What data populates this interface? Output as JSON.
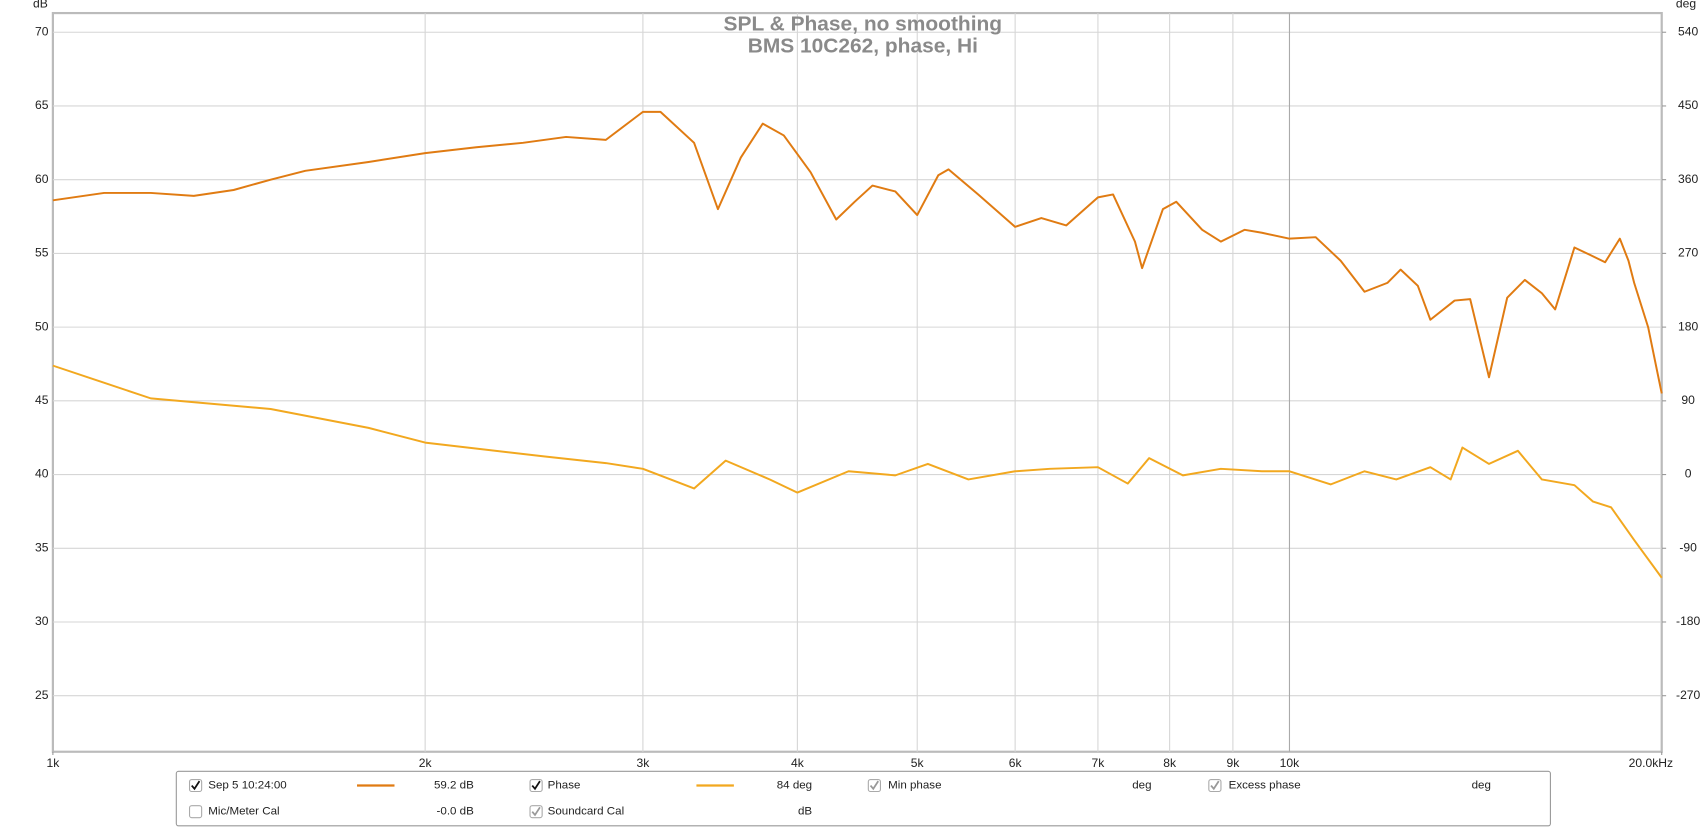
{
  "chart_data": {
    "type": "line",
    "title": "SPL & Phase, no smoothing",
    "subtitle": "BMS 10C262, phase, Hi",
    "y_label": "dB",
    "y2_label": "deg",
    "log_x": true,
    "grid": true,
    "xlim": [
      1000,
      20000
    ],
    "xticks": [
      {
        "value": 1000,
        "label": "1k"
      },
      {
        "value": 2000,
        "label": "2k"
      },
      {
        "value": 3000,
        "label": "3k"
      },
      {
        "value": 4000,
        "label": "4k"
      },
      {
        "value": 5000,
        "label": "5k"
      },
      {
        "value": 6000,
        "label": "6k"
      },
      {
        "value": 7000,
        "label": "7k"
      },
      {
        "value": 8000,
        "label": "8k"
      },
      {
        "value": 9000,
        "label": "9k"
      },
      {
        "value": 10000,
        "label": "10k"
      },
      {
        "value": 20000,
        "label": "20.0kHz"
      }
    ],
    "ylim": [
      21.2,
      71.3
    ],
    "yticks": [
      25,
      30,
      35,
      40,
      45,
      50,
      55,
      60,
      65,
      70
    ],
    "y2lim": [
      -338.4,
      563.4
    ],
    "y2ticks": [
      -270,
      -180,
      -90,
      0,
      90,
      180,
      270,
      360,
      450,
      540
    ],
    "series": [
      {
        "name": "Sep 5 10:24:00",
        "color": "#e07b12",
        "x": [
          1000,
          1100,
          1200,
          1300,
          1400,
          1500,
          1600,
          1800,
          2000,
          2200,
          2400,
          2600,
          2800,
          3000,
          3100,
          3300,
          3450,
          3600,
          3750,
          3900,
          4100,
          4300,
          4450,
          4600,
          4800,
          5000,
          5200,
          5300,
          5600,
          6000,
          6300,
          6600,
          7000,
          7200,
          7500,
          7600,
          7900,
          8100,
          8500,
          8800,
          9200,
          9500,
          10000,
          10500,
          11000,
          11500,
          12000,
          12300,
          12700,
          13000,
          13600,
          14000,
          14500,
          15000,
          15500,
          16000,
          16400,
          17000,
          17500,
          18000,
          18500,
          18800,
          19000,
          19500,
          20000
        ],
        "values": [
          58.6,
          59.1,
          59.1,
          58.9,
          59.3,
          60.0,
          60.6,
          61.2,
          61.8,
          62.2,
          62.5,
          62.9,
          62.7,
          64.6,
          64.6,
          62.5,
          58.0,
          61.5,
          63.8,
          63.0,
          60.5,
          57.3,
          58.5,
          59.6,
          59.2,
          57.6,
          60.3,
          60.7,
          59.0,
          56.8,
          57.4,
          56.9,
          58.8,
          59.0,
          55.8,
          54.0,
          58.0,
          58.5,
          56.6,
          55.8,
          56.6,
          56.4,
          56.0,
          56.1,
          54.5,
          52.4,
          53.0,
          53.9,
          52.8,
          50.5,
          51.8,
          51.9,
          46.6,
          52.0,
          53.2,
          52.3,
          51.2,
          55.4,
          54.9,
          54.4,
          56.0,
          54.5,
          53.0,
          50.0,
          45.5
        ]
      },
      {
        "name": "Phase",
        "color": "#f2a81f",
        "axis": "y2",
        "x": [
          1000,
          1200,
          1500,
          1800,
          2000,
          2500,
          2800,
          3000,
          3300,
          3500,
          3800,
          4000,
          4400,
          4800,
          5100,
          5500,
          6000,
          6400,
          7000,
          7400,
          7700,
          8200,
          8800,
          9500,
          10000,
          10800,
          11500,
          12200,
          13000,
          13500,
          13800,
          14500,
          15300,
          16000,
          17000,
          17600,
          18200,
          19000,
          20000
        ],
        "values": [
          133,
          93,
          80,
          57,
          39,
          22,
          14,
          7,
          -17,
          17,
          -6,
          -22,
          4,
          -1,
          13,
          -6,
          4,
          7,
          9,
          -11,
          20,
          -1,
          7,
          4,
          4,
          -12,
          4,
          -6,
          9,
          -6,
          33,
          13,
          29,
          -6,
          -13,
          -33,
          -40,
          -80,
          -126
        ]
      }
    ],
    "legend": [
      {
        "label": "Sep 5 10:24:00",
        "readout": "59.2 dB",
        "checked": true,
        "color": "#e07b12"
      },
      {
        "label": "Phase",
        "readout": "84 deg",
        "checked": true,
        "color": "#f2a81f"
      },
      {
        "label": "Min phase",
        "readout": "deg",
        "checked": true,
        "color": "#999999"
      },
      {
        "label": "Excess phase",
        "readout": "deg",
        "checked": true,
        "color": "#999999"
      },
      {
        "label": "Mic/Meter Cal",
        "readout": "-0.0 dB",
        "checked": false,
        "color": "#222222"
      },
      {
        "label": "Soundcard Cal",
        "readout": "dB",
        "checked": true,
        "color": "#999999"
      }
    ]
  }
}
